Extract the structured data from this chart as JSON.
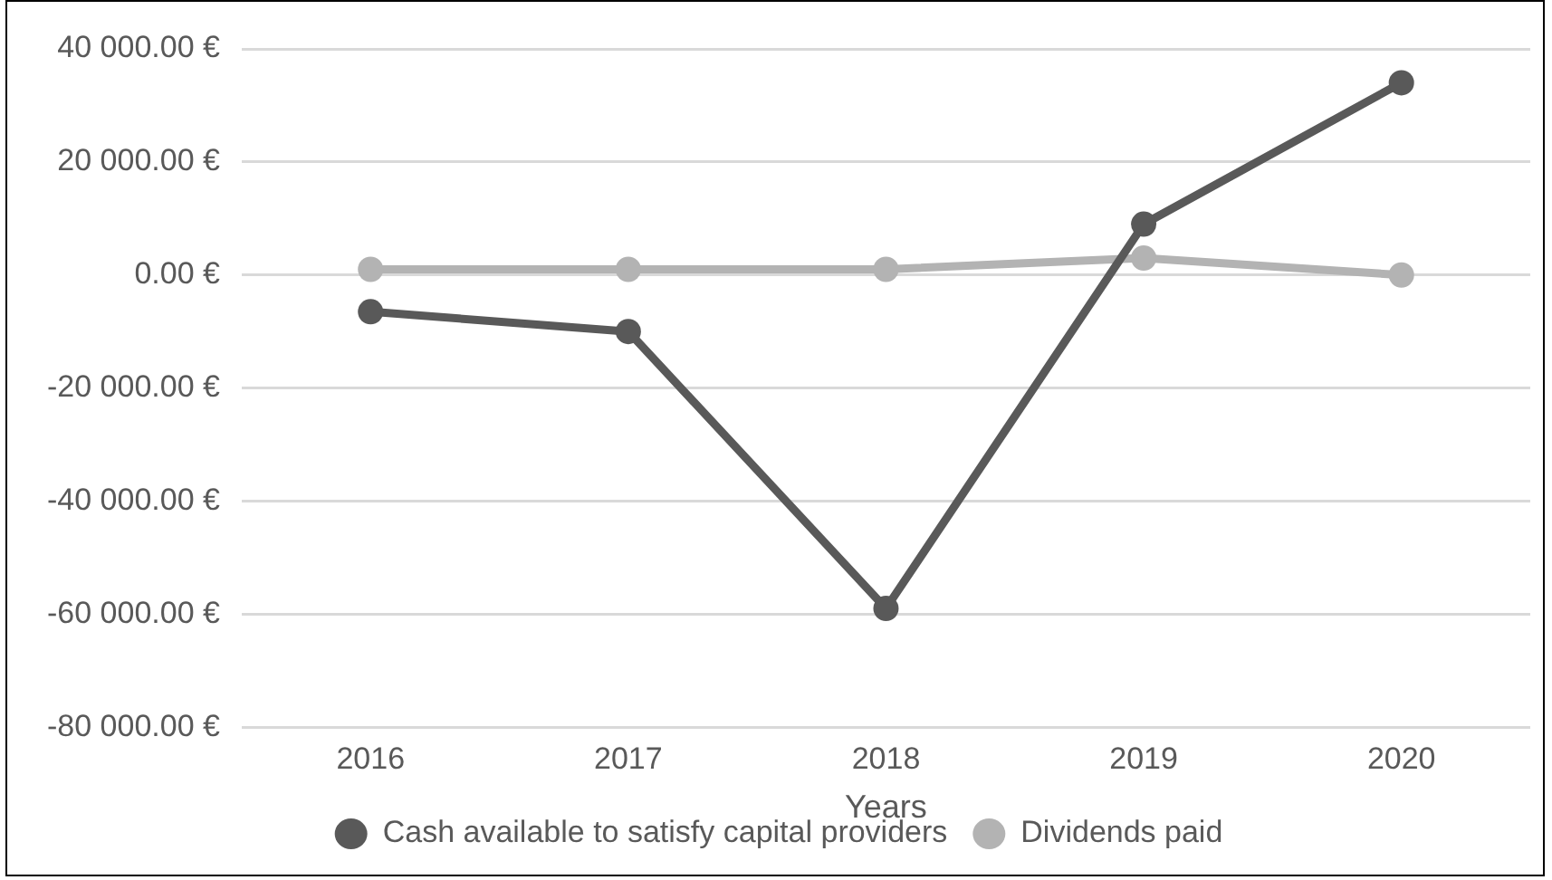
{
  "chart_data": {
    "type": "line",
    "xlabel": "Years",
    "categories": [
      "2016",
      "2017",
      "2018",
      "2019",
      "2020"
    ],
    "series": [
      {
        "name": "Cash available to satisfy capital providers",
        "color": "#595959",
        "values": [
          -6500,
          -10000,
          -59000,
          9000,
          34000
        ]
      },
      {
        "name": "Dividends paid",
        "color": "#b3b3b3",
        "values": [
          1000,
          1000,
          1000,
          3000,
          0
        ]
      }
    ],
    "ylim": [
      -80000,
      40000
    ],
    "yticks": [
      {
        "value": -80000,
        "label": "-80 000.00 €"
      },
      {
        "value": -60000,
        "label": "-60 000.00 €"
      },
      {
        "value": -40000,
        "label": "-40 000.00 €"
      },
      {
        "value": -20000,
        "label": "-20 000.00 €"
      },
      {
        "value": 0,
        "label": "0.00 €"
      },
      {
        "value": 20000,
        "label": "20 000.00 €"
      },
      {
        "value": 40000,
        "label": "40 000.00 €"
      }
    ],
    "grid": "y",
    "legend": "bottom",
    "marker": "circle",
    "line_style": "solid"
  }
}
